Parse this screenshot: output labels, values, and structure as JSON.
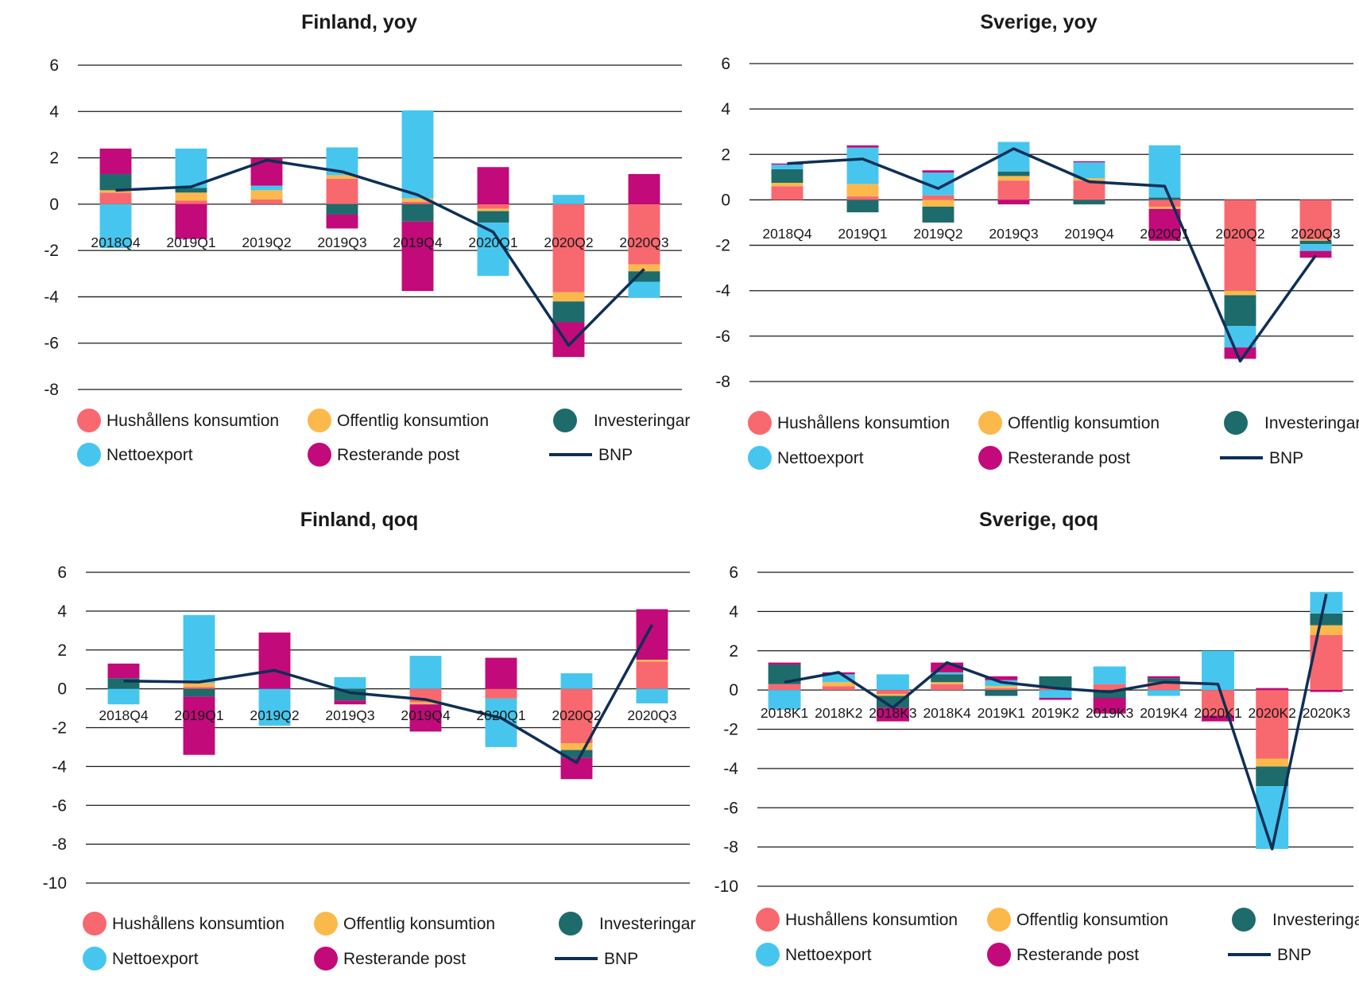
{
  "colors": {
    "hushallens": "#f8686f",
    "offentlig": "#fbb94c",
    "investeringar": "#1e6b6c",
    "nettoexport": "#46c6ee",
    "resterande": "#c20a7a",
    "bnp": "#0e2f56"
  },
  "legend": {
    "hushallens": "Hushållens konsumtion",
    "offentlig": "Offentlig konsumtion",
    "investeringar": "Investeringar",
    "nettoexport": "Nettoexport",
    "resterande": "Resterande post",
    "bnp": "BNP"
  },
  "chart_data": [
    {
      "type": "bar",
      "stacked": true,
      "title": "Finland, yoy",
      "ylim": [
        -8,
        6
      ],
      "yticks": [
        6,
        4,
        2,
        0,
        -2,
        -4,
        -6,
        -8
      ],
      "grid": true,
      "legend_position": "bottom",
      "categories": [
        "2018Q4",
        "2019Q1",
        "2019Q2",
        "2019Q3",
        "2019Q4",
        "2020Q1",
        "2020Q2",
        "2020Q3"
      ],
      "series": [
        {
          "name": "Hushållens konsumtion",
          "key": "hushallens",
          "values": [
            0.5,
            0.15,
            0.2,
            1.1,
            0.1,
            -0.2,
            -3.8,
            -2.6
          ]
        },
        {
          "name": "Offentlig konsumtion",
          "key": "offentlig",
          "values": [
            0.1,
            0.35,
            0.4,
            0.15,
            0.15,
            -0.1,
            -0.4,
            -0.3
          ]
        },
        {
          "name": "Investeringar",
          "key": "investeringar",
          "values": [
            0.7,
            0.2,
            0.0,
            -0.45,
            -0.75,
            -0.5,
            -0.9,
            -0.45
          ]
        },
        {
          "name": "Nettoexport",
          "key": "nettoexport",
          "values": [
            -1.9,
            1.7,
            0.2,
            1.2,
            3.8,
            -2.3,
            0.4,
            -0.7
          ]
        },
        {
          "name": "Resterande post",
          "key": "resterande",
          "values": [
            1.1,
            -1.5,
            1.2,
            -0.6,
            -3.0,
            1.6,
            -1.5,
            1.3
          ]
        }
      ],
      "line": {
        "name": "BNP",
        "values": [
          0.6,
          0.75,
          1.9,
          1.4,
          0.4,
          -1.2,
          -6.1,
          -2.8
        ]
      }
    },
    {
      "type": "bar",
      "stacked": true,
      "title": "Sverige, yoy",
      "ylim": [
        -8,
        6
      ],
      "yticks": [
        6,
        4,
        2,
        0,
        -2,
        -4,
        -6,
        -8
      ],
      "grid": true,
      "legend_position": "bottom",
      "categories": [
        "2018Q4",
        "2019Q1",
        "2019Q2",
        "2019Q3",
        "2019Q4",
        "2020Q1",
        "2020Q2",
        "2020Q3"
      ],
      "series": [
        {
          "name": "Hushållens konsumtion",
          "key": "hushallens",
          "values": [
            0.6,
            0.15,
            0.2,
            0.85,
            0.85,
            -0.3,
            -4.0,
            -1.75
          ]
        },
        {
          "name": "Offentlig konsumtion",
          "key": "offentlig",
          "values": [
            0.15,
            0.55,
            -0.3,
            0.2,
            0.1,
            -0.1,
            -0.2,
            -0.05
          ]
        },
        {
          "name": "Investeringar",
          "key": "investeringar",
          "values": [
            0.6,
            -0.55,
            -0.7,
            0.2,
            -0.2,
            0.1,
            -1.35,
            -0.15
          ]
        },
        {
          "name": "Nettoexport",
          "key": "nettoexport",
          "values": [
            0.2,
            1.6,
            1.0,
            1.3,
            0.7,
            2.3,
            -0.95,
            -0.3
          ]
        },
        {
          "name": "Resterande post",
          "key": "resterande",
          "values": [
            0.05,
            0.1,
            0.1,
            -0.2,
            0.05,
            -1.4,
            -0.5,
            -0.3
          ]
        }
      ],
      "line": {
        "name": "BNP",
        "values": [
          1.6,
          1.8,
          0.5,
          2.25,
          0.8,
          0.6,
          -7.1,
          -2.45
        ]
      }
    },
    {
      "type": "bar",
      "stacked": true,
      "title": "Finland, qoq",
      "ylim": [
        -10,
        6
      ],
      "yticks": [
        6,
        4,
        2,
        0,
        -2,
        -4,
        -6,
        -8,
        -10
      ],
      "grid": true,
      "legend_position": "bottom",
      "categories": [
        "2018Q4",
        "2019Q1",
        "2019Q2",
        "2019Q3",
        "2019Q4",
        "2020Q1",
        "2020Q2",
        "2020Q3"
      ],
      "series": [
        {
          "name": "Hushållens konsumtion",
          "key": "hushallens",
          "values": [
            0.0,
            0.1,
            0.0,
            0.0,
            -0.7,
            -0.5,
            -2.8,
            1.4
          ]
        },
        {
          "name": "Offentlig konsumtion",
          "key": "offentlig",
          "values": [
            0.0,
            0.2,
            0.0,
            0.0,
            -0.1,
            0.0,
            -0.35,
            0.1
          ]
        },
        {
          "name": "Investeringar",
          "key": "investeringar",
          "values": [
            0.55,
            -0.4,
            0.0,
            -0.6,
            0.0,
            0.0,
            -0.4,
            0.0
          ]
        },
        {
          "name": "Nettoexport",
          "key": "nettoexport",
          "values": [
            -0.8,
            3.5,
            -1.9,
            0.6,
            1.7,
            -2.5,
            0.8,
            -0.75
          ]
        },
        {
          "name": "Resterande post",
          "key": "resterande",
          "values": [
            0.75,
            -3.0,
            2.9,
            -0.2,
            -1.4,
            1.6,
            -1.1,
            2.6
          ]
        }
      ],
      "line": {
        "name": "BNP",
        "values": [
          0.4,
          0.35,
          0.95,
          -0.2,
          -0.55,
          -1.5,
          -3.8,
          3.3
        ]
      }
    },
    {
      "type": "bar",
      "stacked": true,
      "title": "Sverige, qoq",
      "ylim": [
        -10,
        6
      ],
      "yticks": [
        6,
        4,
        2,
        0,
        -2,
        -4,
        -6,
        -8,
        -10
      ],
      "grid": true,
      "legend_position": "bottom",
      "categories": [
        "2018K1",
        "2018K2",
        "2018K3",
        "2018K4",
        "2019K1",
        "2019K2",
        "2019K3",
        "2019K4",
        "2020K1",
        "2020K2",
        "2020K3"
      ],
      "series": [
        {
          "name": "Hushållens konsumtion",
          "key": "hushallens",
          "values": [
            0.3,
            0.2,
            -0.2,
            0.3,
            0.1,
            0.1,
            0.3,
            0.4,
            -1.3,
            -3.5,
            2.8
          ]
        },
        {
          "name": "Offentlig konsumtion",
          "key": "offentlig",
          "values": [
            0.0,
            0.2,
            -0.1,
            0.1,
            0.1,
            0.0,
            0.0,
            0.0,
            0.0,
            -0.4,
            0.5
          ]
        },
        {
          "name": "Investeringar",
          "key": "investeringar",
          "values": [
            1.0,
            0.0,
            -0.6,
            0.4,
            -0.3,
            0.6,
            -0.4,
            0.2,
            0.0,
            -1.0,
            0.6
          ]
        },
        {
          "name": "Nettoexport",
          "key": "nettoexport",
          "values": [
            -1.0,
            0.4,
            0.8,
            0.1,
            0.3,
            -0.4,
            0.9,
            -0.3,
            2.0,
            -3.2,
            1.1
          ]
        },
        {
          "name": "Resterande post",
          "key": "resterande",
          "values": [
            0.1,
            0.1,
            -0.7,
            0.5,
            0.2,
            -0.1,
            -0.8,
            0.1,
            -0.3,
            0.1,
            -0.1
          ]
        }
      ],
      "line": {
        "name": "BNP",
        "values": [
          0.4,
          0.9,
          -0.9,
          1.4,
          0.4,
          0.1,
          -0.1,
          0.4,
          0.3,
          -8.1,
          4.9
        ]
      }
    }
  ]
}
